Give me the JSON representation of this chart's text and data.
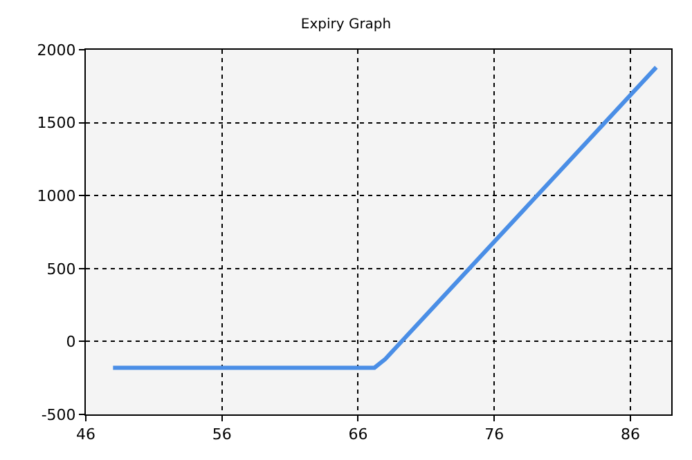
{
  "chart_data": {
    "type": "line",
    "title": "Expiry Graph",
    "x": [
      48,
      67.2,
      68,
      87.9
    ],
    "series": [
      {
        "color": "#4a8ee6",
        "values": [
          -180,
          -180,
          -120,
          1880
        ]
      }
    ],
    "xlim": [
      46,
      89
    ],
    "xticks": [
      46,
      56,
      66,
      76,
      86
    ],
    "ylim": [
      -500,
      2000
    ],
    "yticks": [
      -500,
      0,
      500,
      1000,
      1500,
      2000
    ],
    "grid": true,
    "marker": "none",
    "line_style": "solid"
  }
}
